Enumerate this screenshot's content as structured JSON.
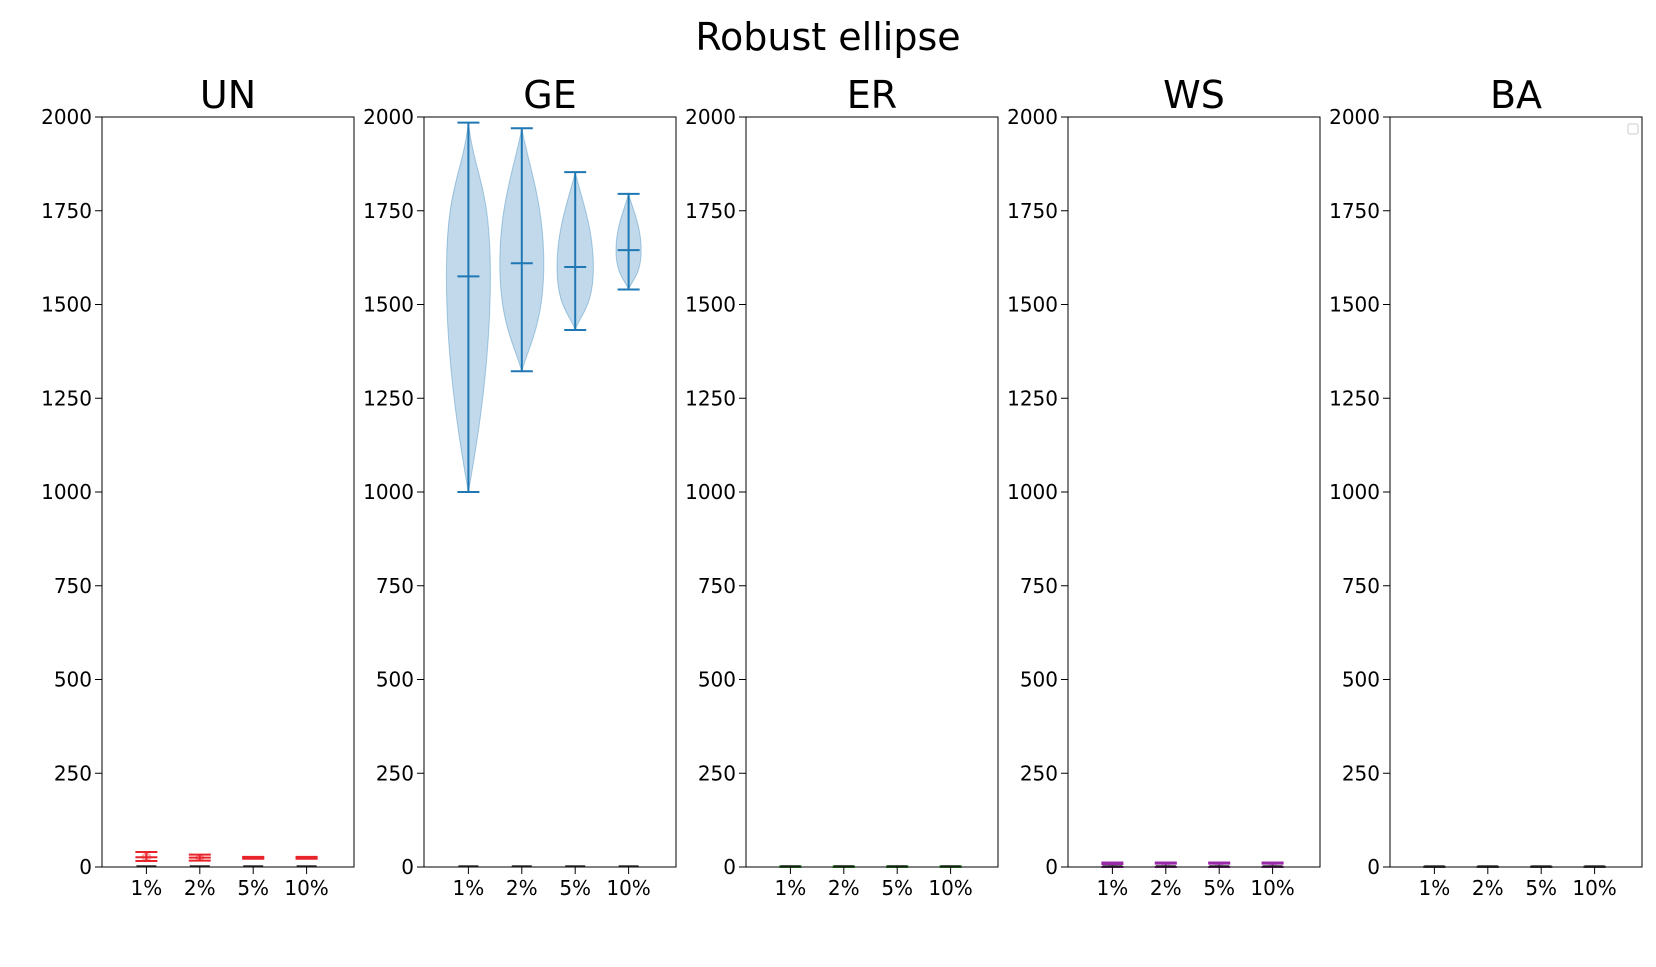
{
  "figure_title": "Robust ellipse",
  "chart_data": [
    {
      "type": "violin",
      "title": "UN",
      "color": "#e8242a",
      "ylim": [
        0,
        2000
      ],
      "yticks": [
        "0",
        "250",
        "500",
        "750",
        "1000",
        "1250",
        "1500",
        "1750",
        "2000"
      ],
      "categories": [
        "1%",
        "2%",
        "5%",
        "10%"
      ],
      "violins": [
        {
          "min": 16,
          "max": 40,
          "mean": 26
        },
        {
          "min": 17,
          "max": 33,
          "mean": 25
        },
        {
          "min": 22,
          "max": 27,
          "mean": 25
        },
        {
          "min": 22,
          "max": 27,
          "mean": 25
        }
      ],
      "zero_markers": true,
      "legend": false
    },
    {
      "type": "violin",
      "title": "GE",
      "color": "#1f77b4",
      "ylim": [
        0,
        2000
      ],
      "yticks": [
        "0",
        "250",
        "500",
        "750",
        "1000",
        "1250",
        "1500",
        "1750",
        "2000"
      ],
      "categories": [
        "1%",
        "2%",
        "5%",
        "10%"
      ],
      "violins": [
        {
          "min": 1000,
          "max": 1985,
          "mean": 1575
        },
        {
          "min": 1322,
          "max": 1970,
          "mean": 1610
        },
        {
          "min": 1432,
          "max": 1853,
          "mean": 1600
        },
        {
          "min": 1540,
          "max": 1795,
          "mean": 1645
        }
      ],
      "zero_markers": true,
      "legend": false
    },
    {
      "type": "violin",
      "title": "ER",
      "color": "#2ca02c",
      "ylim": [
        0,
        2000
      ],
      "yticks": [
        "0",
        "250",
        "500",
        "750",
        "1000",
        "1250",
        "1500",
        "1750",
        "2000"
      ],
      "categories": [
        "1%",
        "2%",
        "5%",
        "10%"
      ],
      "violins": [
        {
          "min": 0,
          "max": 2,
          "mean": 1
        },
        {
          "min": 0,
          "max": 2,
          "mean": 1
        },
        {
          "min": 0,
          "max": 2,
          "mean": 1
        },
        {
          "min": 0,
          "max": 2,
          "mean": 1
        }
      ],
      "zero_markers": true,
      "legend": false
    },
    {
      "type": "violin",
      "title": "WS",
      "color": "#9a2aa8",
      "ylim": [
        0,
        2000
      ],
      "yticks": [
        "0",
        "250",
        "500",
        "750",
        "1000",
        "1250",
        "1500",
        "1750",
        "2000"
      ],
      "categories": [
        "1%",
        "2%",
        "5%",
        "10%"
      ],
      "violins": [
        {
          "min": 0,
          "max": 12,
          "mean": 8
        },
        {
          "min": 0,
          "max": 12,
          "mean": 9
        },
        {
          "min": 0,
          "max": 12,
          "mean": 9
        },
        {
          "min": 0,
          "max": 12,
          "mean": 9
        }
      ],
      "zero_markers": true,
      "legend": false
    },
    {
      "type": "violin",
      "title": "BA",
      "color": "#555555",
      "ylim": [
        0,
        2000
      ],
      "yticks": [
        "0",
        "250",
        "500",
        "750",
        "1000",
        "1250",
        "1500",
        "1750",
        "2000"
      ],
      "categories": [
        "1%",
        "2%",
        "5%",
        "10%"
      ],
      "violins": [
        {
          "min": 0,
          "max": 1,
          "mean": 0
        },
        {
          "min": 0,
          "max": 1,
          "mean": 0
        },
        {
          "min": 0,
          "max": 1,
          "mean": 0
        },
        {
          "min": 0,
          "max": 1,
          "mean": 0
        }
      ],
      "zero_markers": true,
      "legend": true
    }
  ]
}
